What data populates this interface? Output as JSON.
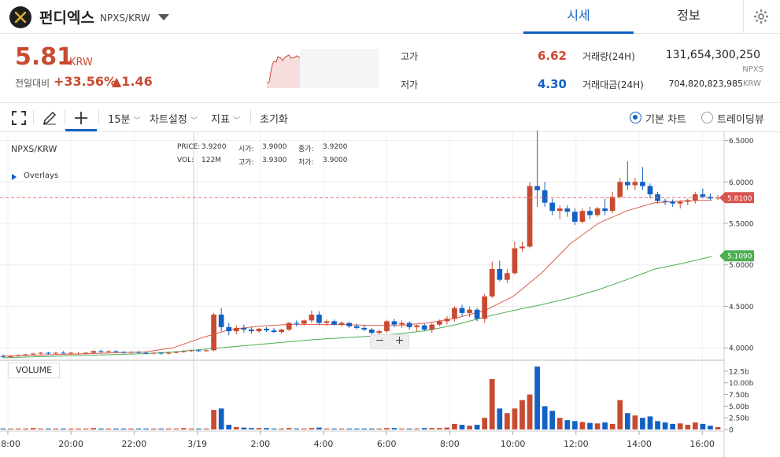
{
  "header": {
    "coin_name": "펀디엑스",
    "pair": "NPXS/KRW",
    "tabs": [
      {
        "label": "시세",
        "active": true
      },
      {
        "label": "정보",
        "active": false
      }
    ]
  },
  "summary": {
    "price": "5.81",
    "unit": "KRW",
    "change_label": "전일대비",
    "change_pct": "+33.56%",
    "change_abs": "▲1.46",
    "high_label": "고가",
    "high_value": "6.62",
    "low_label": "저가",
    "low_value": "4.30",
    "volume_label": "거래량(24H)",
    "volume_value": "131,654,300,250",
    "volume_unit": "NPXS",
    "amount_label": "거래대금(24H)",
    "amount_value": "704,820,823,985",
    "amount_unit": "KRW",
    "up_color": "#c84a31",
    "down_color": "#1261c4"
  },
  "toolbar": {
    "interval": "15분",
    "chart_settings": "차트설정",
    "indicators": "지표",
    "reset": "초기화",
    "basic_chart": "기본 차트",
    "trading_view": "트레이딩뷰"
  },
  "chart_panel": {
    "symbol": "NPXS/KRW",
    "overlays": "Overlays",
    "volume_label": "VOLUME",
    "legend": {
      "price_label": "PRICE:",
      "price_value": "3.9200",
      "open_label": "시가:",
      "open_value": "3.9000",
      "close_label": "종가:",
      "close_value": "3.9200",
      "vol_label": "VOL:",
      "vol_value": "122M",
      "high_label": "고가:",
      "high_value": "3.9300",
      "low_label": "저가:",
      "low_value": "3.9000"
    },
    "current_price_tag": "5.8100",
    "ma_tag": "5.1090"
  },
  "chart_data": {
    "type": "candlestick",
    "price_axis": {
      "ticks": [
        "6.5000",
        "6.0000",
        "5.5000",
        "5.0000",
        "4.5000",
        "4.0000"
      ],
      "range": [
        3.85,
        6.6
      ]
    },
    "volume_axis": {
      "ticks": [
        "12.5b",
        "10.00b",
        "7.50b",
        "5.00b",
        "2.50b",
        "0"
      ],
      "range": [
        0,
        13.5
      ]
    },
    "time_axis": {
      "ticks": [
        "18:00",
        "20:00",
        "22:00",
        "3/19",
        "2:00",
        "4:00",
        "6:00",
        "8:00",
        "10:00",
        "12:00",
        "14:00",
        "16:00"
      ]
    },
    "candles": [
      [
        3.9,
        3.92,
        3.88,
        3.89,
        0.2
      ],
      [
        3.89,
        3.91,
        3.88,
        3.9,
        0.2
      ],
      [
        3.9,
        3.92,
        3.89,
        3.91,
        0.2
      ],
      [
        3.91,
        3.93,
        3.9,
        3.92,
        0.2
      ],
      [
        3.92,
        3.94,
        3.91,
        3.93,
        0.3
      ],
      [
        3.93,
        3.95,
        3.92,
        3.94,
        0.2
      ],
      [
        3.94,
        3.95,
        3.92,
        3.93,
        0.2
      ],
      [
        3.93,
        3.95,
        3.92,
        3.94,
        0.2
      ],
      [
        3.94,
        3.96,
        3.93,
        3.93,
        0.2
      ],
      [
        3.93,
        3.95,
        3.92,
        3.94,
        0.2
      ],
      [
        3.93,
        3.95,
        3.92,
        3.93,
        0.2
      ],
      [
        3.93,
        3.95,
        3.92,
        3.94,
        0.2
      ],
      [
        3.94,
        3.97,
        3.93,
        3.96,
        0.3
      ],
      [
        3.96,
        3.98,
        3.94,
        3.95,
        0.2
      ],
      [
        3.95,
        3.97,
        3.94,
        3.96,
        0.2
      ],
      [
        3.96,
        3.97,
        3.94,
        3.95,
        0.2
      ],
      [
        3.95,
        3.96,
        3.93,
        3.94,
        0.2
      ],
      [
        3.94,
        3.96,
        3.93,
        3.95,
        0.2
      ],
      [
        3.95,
        3.96,
        3.93,
        3.94,
        0.2
      ],
      [
        3.94,
        3.95,
        3.92,
        3.93,
        0.2
      ],
      [
        3.93,
        3.95,
        3.92,
        3.94,
        0.2
      ],
      [
        3.94,
        3.95,
        3.92,
        3.93,
        0.2
      ],
      [
        3.93,
        3.95,
        3.92,
        3.94,
        0.2
      ],
      [
        3.94,
        3.96,
        3.93,
        3.95,
        0.2
      ],
      [
        3.95,
        3.97,
        3.94,
        3.96,
        0.3
      ],
      [
        3.96,
        3.98,
        3.95,
        3.97,
        0.2
      ],
      [
        3.97,
        3.98,
        3.95,
        3.96,
        0.2
      ],
      [
        3.96,
        3.98,
        3.95,
        3.97,
        0.2
      ],
      [
        3.97,
        4.42,
        3.96,
        4.4,
        4.2
      ],
      [
        4.4,
        4.48,
        4.2,
        4.25,
        4.5
      ],
      [
        4.25,
        4.3,
        4.15,
        4.2,
        1.0
      ],
      [
        4.2,
        4.27,
        4.16,
        4.24,
        0.5
      ],
      [
        4.24,
        4.28,
        4.18,
        4.22,
        0.4
      ],
      [
        4.22,
        4.25,
        4.17,
        4.2,
        0.3
      ],
      [
        4.2,
        4.24,
        4.18,
        4.23,
        0.3
      ],
      [
        4.23,
        4.25,
        4.19,
        4.21,
        0.3
      ],
      [
        4.21,
        4.24,
        4.18,
        4.19,
        0.2
      ],
      [
        4.19,
        4.23,
        4.17,
        4.22,
        0.2
      ],
      [
        4.22,
        4.31,
        4.2,
        4.3,
        0.3
      ],
      [
        4.3,
        4.33,
        4.26,
        4.29,
        0.2
      ],
      [
        4.29,
        4.34,
        4.27,
        4.33,
        0.2
      ],
      [
        4.33,
        4.45,
        4.3,
        4.4,
        0.3
      ],
      [
        4.4,
        4.44,
        4.28,
        4.3,
        0.4
      ],
      [
        4.3,
        4.34,
        4.26,
        4.32,
        0.2
      ],
      [
        4.32,
        4.34,
        4.27,
        4.28,
        0.2
      ],
      [
        4.28,
        4.32,
        4.26,
        4.3,
        0.2
      ],
      [
        4.3,
        4.31,
        4.24,
        4.26,
        0.2
      ],
      [
        4.26,
        4.29,
        4.22,
        4.24,
        0.2
      ],
      [
        4.24,
        4.27,
        4.2,
        4.22,
        0.2
      ],
      [
        4.22,
        4.24,
        4.14,
        4.18,
        0.2
      ],
      [
        4.18,
        4.22,
        4.15,
        4.2,
        0.2
      ],
      [
        4.2,
        4.34,
        4.18,
        4.32,
        0.3
      ],
      [
        4.32,
        4.35,
        4.25,
        4.28,
        0.3
      ],
      [
        4.28,
        4.33,
        4.24,
        4.3,
        0.2
      ],
      [
        4.3,
        4.32,
        4.22,
        4.25,
        0.2
      ],
      [
        4.25,
        4.28,
        4.2,
        4.27,
        0.2
      ],
      [
        4.27,
        4.29,
        4.2,
        4.22,
        0.3
      ],
      [
        4.22,
        4.3,
        4.18,
        4.28,
        0.3
      ],
      [
        4.28,
        4.34,
        4.26,
        4.32,
        0.3
      ],
      [
        4.32,
        4.38,
        4.28,
        4.35,
        0.4
      ],
      [
        4.35,
        4.5,
        4.32,
        4.48,
        1.2
      ],
      [
        4.48,
        4.52,
        4.38,
        4.42,
        1.0
      ],
      [
        4.42,
        4.5,
        4.37,
        4.46,
        0.8
      ],
      [
        4.46,
        4.48,
        4.32,
        4.35,
        1.0
      ],
      [
        4.35,
        4.65,
        4.3,
        4.62,
        2.5
      ],
      [
        4.62,
        5.04,
        4.6,
        4.95,
        10.8
      ],
      [
        4.95,
        5.05,
        4.8,
        4.82,
        4.5
      ],
      [
        4.82,
        4.95,
        4.78,
        4.9,
        3.5
      ],
      [
        4.9,
        5.28,
        4.88,
        5.2,
        4.5
      ],
      [
        5.2,
        5.28,
        5.16,
        5.22,
        6.3
      ],
      [
        5.22,
        6.0,
        5.2,
        5.95,
        7.5
      ],
      [
        5.95,
        6.62,
        5.7,
        5.9,
        13.5
      ],
      [
        5.9,
        6.0,
        5.7,
        5.75,
        5.0
      ],
      [
        5.75,
        5.8,
        5.6,
        5.65,
        4.0
      ],
      [
        5.65,
        5.72,
        5.55,
        5.68,
        2.5
      ],
      [
        5.68,
        5.72,
        5.58,
        5.64,
        2.0
      ],
      [
        5.64,
        5.68,
        5.48,
        5.52,
        1.8
      ],
      [
        5.52,
        5.68,
        5.5,
        5.65,
        1.6
      ],
      [
        5.65,
        5.7,
        5.55,
        5.6,
        1.4
      ],
      [
        5.6,
        5.7,
        5.58,
        5.68,
        1.3
      ],
      [
        5.68,
        5.8,
        5.6,
        5.65,
        1.5
      ],
      [
        5.65,
        5.88,
        5.62,
        5.82,
        1.2
      ],
      [
        5.82,
        6.05,
        5.8,
        6.0,
        6.3
      ],
      [
        6.0,
        6.25,
        5.9,
        5.96,
        3.5
      ],
      [
        5.96,
        6.05,
        5.9,
        6.0,
        3.0
      ],
      [
        6.0,
        6.18,
        5.9,
        5.95,
        2.5
      ],
      [
        5.95,
        5.98,
        5.8,
        5.85,
        2.8
      ],
      [
        5.85,
        5.88,
        5.74,
        5.77,
        1.8
      ],
      [
        5.77,
        5.8,
        5.72,
        5.76,
        1.5
      ],
      [
        5.76,
        5.79,
        5.7,
        5.74,
        1.2
      ],
      [
        5.74,
        5.78,
        5.68,
        5.76,
        1.3
      ],
      [
        5.76,
        5.8,
        5.72,
        5.78,
        1.0
      ],
      [
        5.78,
        5.88,
        5.74,
        5.85,
        1.5
      ],
      [
        5.85,
        5.92,
        5.8,
        5.82,
        1.2
      ],
      [
        5.82,
        5.86,
        5.78,
        5.8,
        0.8
      ],
      [
        5.8,
        5.84,
        5.78,
        5.81,
        0.5
      ]
    ],
    "ma_fast": [
      3.9,
      3.91,
      3.92,
      3.93,
      3.94,
      3.95,
      4.0,
      4.12,
      4.22,
      4.26,
      4.28,
      4.28,
      4.28,
      4.27,
      4.27,
      4.3,
      4.36,
      4.45,
      4.62,
      4.9,
      5.25,
      5.5,
      5.65,
      5.75,
      5.77,
      5.78
    ],
    "ma_slow": [
      3.88,
      3.89,
      3.9,
      3.91,
      3.92,
      3.93,
      3.95,
      3.98,
      4.01,
      4.04,
      4.07,
      4.1,
      4.12,
      4.14,
      4.17,
      4.21,
      4.28,
      4.37,
      4.45,
      4.52,
      4.6,
      4.7,
      4.82,
      4.95,
      5.02,
      5.1
    ],
    "current_price": 5.81,
    "ma_value": 5.109
  }
}
